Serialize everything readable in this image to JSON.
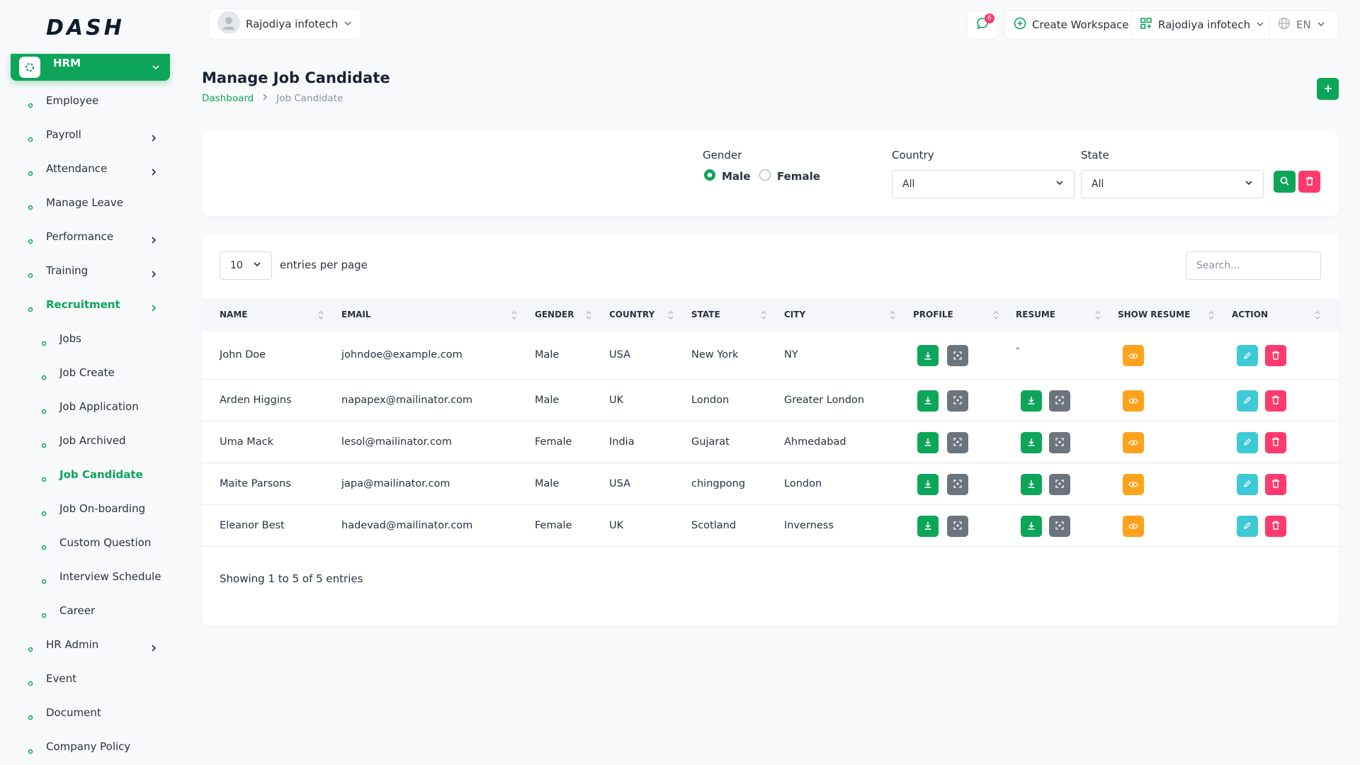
{
  "header": {
    "logo": "DASH",
    "user": "Rajodiya infotech",
    "notifications": "6",
    "create_workspace": "Create Workspace",
    "workspace": "Rajodiya infotech",
    "language": "EN"
  },
  "sidebar": {
    "module": "HRM",
    "items": [
      {
        "label": "Employee",
        "expandable": false
      },
      {
        "label": "Payroll",
        "expandable": true
      },
      {
        "label": "Attendance",
        "expandable": true
      },
      {
        "label": "Manage Leave",
        "expandable": false
      },
      {
        "label": "Performance",
        "expandable": true
      },
      {
        "label": "Training",
        "expandable": true
      },
      {
        "label": "Recruitment",
        "expandable": true,
        "active": true,
        "children": [
          {
            "label": "Jobs"
          },
          {
            "label": "Job Create"
          },
          {
            "label": "Job Application"
          },
          {
            "label": "Job Archived"
          },
          {
            "label": "Job Candidate",
            "active": true
          },
          {
            "label": "Job On-boarding"
          },
          {
            "label": "Custom Question"
          },
          {
            "label": "Interview Schedule"
          },
          {
            "label": "Career"
          }
        ]
      },
      {
        "label": "HR Admin",
        "expandable": true
      },
      {
        "label": "Event",
        "expandable": false
      },
      {
        "label": "Document",
        "expandable": false
      },
      {
        "label": "Company Policy",
        "expandable": false
      }
    ]
  },
  "page": {
    "title": "Manage Job Candidate",
    "breadcrumb": [
      "Dashboard",
      "Job Candidate"
    ]
  },
  "filter": {
    "gender_label": "Gender",
    "gender_options": [
      "Male",
      "Female"
    ],
    "gender_selected": 0,
    "country_label": "Country",
    "country_value": "All",
    "state_label": "State",
    "state_value": "All"
  },
  "table": {
    "entries": "10",
    "entries_label": "entries per page",
    "search_placeholder": "Search...",
    "columns": [
      "NAME",
      "EMAIL",
      "GENDER",
      "COUNTRY",
      "STATE",
      "CITY",
      "PROFILE",
      "RESUME",
      "SHOW RESUME",
      "ACTION"
    ],
    "no_resume_text": "-",
    "rows": [
      {
        "cells": [
          "John Doe",
          "johndoe@example.com",
          "Male",
          "USA",
          "New York",
          "NY"
        ],
        "has_resume": false
      },
      {
        "cells": [
          "Arden Higgins",
          "napapex@mailinator.com",
          "Male",
          "UK",
          "London",
          "Greater London"
        ],
        "has_resume": true
      },
      {
        "cells": [
          "Uma Mack",
          "lesol@mailinator.com",
          "Female",
          "India",
          "Gujarat",
          "Ahmedabad"
        ],
        "has_resume": true
      },
      {
        "cells": [
          "Maite Parsons",
          "japa@mailinator.com",
          "Male",
          "USA",
          "chingpong",
          "London"
        ],
        "has_resume": true
      },
      {
        "cells": [
          "Eleanor Best",
          "hadevad@mailinator.com",
          "Female",
          "UK",
          "Scotland",
          "Inverness"
        ],
        "has_resume": true
      }
    ],
    "footer": "Showing 1 to 5 of 5 entries"
  }
}
